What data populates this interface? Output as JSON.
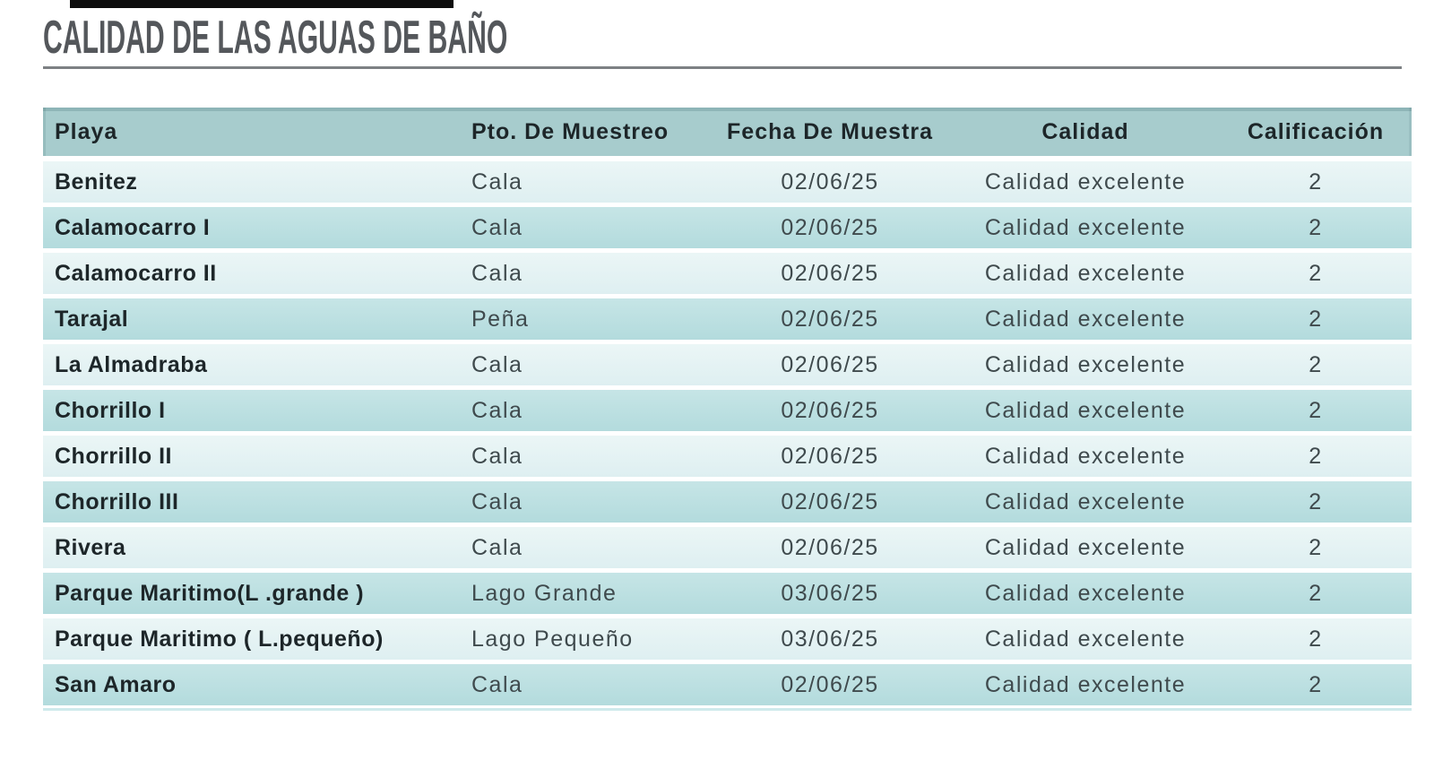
{
  "page": {
    "title": "CALIDAD DE LAS AGUAS DE BAÑO"
  },
  "table": {
    "columns": [
      {
        "id": "playa",
        "label": "Playa"
      },
      {
        "id": "punto",
        "label": "Pto. De Muestreo"
      },
      {
        "id": "fecha",
        "label": "Fecha De Muestra"
      },
      {
        "id": "calidad",
        "label": "Calidad"
      },
      {
        "id": "calificacion",
        "label": "Calificación"
      }
    ],
    "rows": [
      {
        "playa": "Benitez",
        "punto": "Cala",
        "fecha": "02/06/25",
        "calidad": "Calidad excelente",
        "calificacion": "2"
      },
      {
        "playa": "Calamocarro I",
        "punto": "Cala",
        "fecha": "02/06/25",
        "calidad": "Calidad excelente",
        "calificacion": "2"
      },
      {
        "playa": "Calamocarro II",
        "punto": "Cala",
        "fecha": "02/06/25",
        "calidad": "Calidad excelente",
        "calificacion": "2"
      },
      {
        "playa": "Tarajal",
        "punto": "Peña",
        "fecha": "02/06/25",
        "calidad": "Calidad excelente",
        "calificacion": "2"
      },
      {
        "playa": "La Almadraba",
        "punto": "Cala",
        "fecha": "02/06/25",
        "calidad": "Calidad excelente",
        "calificacion": "2"
      },
      {
        "playa": "Chorrillo I",
        "punto": "Cala",
        "fecha": "02/06/25",
        "calidad": "Calidad excelente",
        "calificacion": "2"
      },
      {
        "playa": "Chorrillo II",
        "punto": "Cala",
        "fecha": "02/06/25",
        "calidad": "Calidad excelente",
        "calificacion": "2"
      },
      {
        "playa": "Chorrillo III",
        "punto": "Cala",
        "fecha": "02/06/25",
        "calidad": "Calidad excelente",
        "calificacion": "2"
      },
      {
        "playa": "Rivera",
        "punto": "Cala",
        "fecha": "02/06/25",
        "calidad": "Calidad excelente",
        "calificacion": "2"
      },
      {
        "playa": "Parque Maritimo(L .grande )",
        "punto": "Lago Grande",
        "fecha": "03/06/25",
        "calidad": "Calidad excelente",
        "calificacion": "2"
      },
      {
        "playa": "Parque Maritimo ( L.pequeño)",
        "punto": "Lago Pequeño",
        "fecha": "03/06/25",
        "calidad": "Calidad excelente",
        "calificacion": "2"
      },
      {
        "playa": "San Amaro",
        "punto": "Cala",
        "fecha": "02/06/25",
        "calidad": "Calidad excelente",
        "calificacion": "2"
      }
    ]
  },
  "colors": {
    "header_bg": "#a7cccd",
    "row_medium_bg": "#bce0e2",
    "row_light_bg": "#e2f1f2",
    "bottom_line": "#cfeaec",
    "title_text": "#54575b",
    "title_rule": "#7d8184",
    "header_text": "#1d2629",
    "data_text": "#3f4a4d",
    "top_bar": "#0d0d0d"
  }
}
